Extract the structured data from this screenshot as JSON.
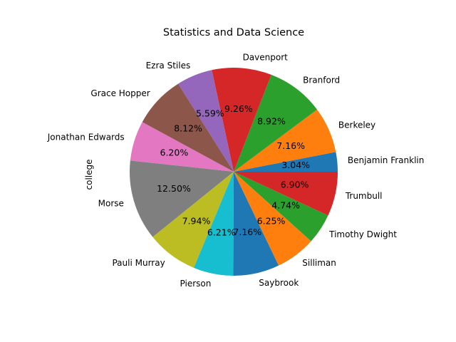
{
  "chart_data": {
    "type": "pie",
    "title": "Statistics and Data Science",
    "ylabel": "college",
    "slices": [
      {
        "label": "Benjamin Franklin",
        "value": 3.04,
        "pct_label": "3.04%",
        "color": "#1f77b4"
      },
      {
        "label": "Berkeley",
        "value": 7.16,
        "pct_label": "7.16%",
        "color": "#ff7f0e"
      },
      {
        "label": "Branford",
        "value": 8.92,
        "pct_label": "8.92%",
        "color": "#2ca02c"
      },
      {
        "label": "Davenport",
        "value": 9.26,
        "pct_label": "9.26%",
        "color": "#d62728"
      },
      {
        "label": "Ezra Stiles",
        "value": 5.59,
        "pct_label": "5.59%",
        "color": "#9467bd"
      },
      {
        "label": "Grace Hopper",
        "value": 8.12,
        "pct_label": "8.12%",
        "color": "#8c564b"
      },
      {
        "label": "Jonathan Edwards",
        "value": 6.2,
        "pct_label": "6.20%",
        "color": "#e377c2"
      },
      {
        "label": "Morse",
        "value": 12.5,
        "pct_label": "12.50%",
        "color": "#7f7f7f"
      },
      {
        "label": "Pauli Murray",
        "value": 7.94,
        "pct_label": "7.94%",
        "color": "#bcbd22"
      },
      {
        "label": "Pierson",
        "value": 6.21,
        "pct_label": "6.21%",
        "color": "#17becf"
      },
      {
        "label": "Saybrook",
        "value": 7.16,
        "pct_label": "7.16%",
        "color": "#1f77b4"
      },
      {
        "label": "Silliman",
        "value": 6.25,
        "pct_label": "6.25%",
        "color": "#ff7f0e"
      },
      {
        "label": "Timothy Dwight",
        "value": 4.74,
        "pct_label": "4.74%",
        "color": "#2ca02c"
      },
      {
        "label": "Trumbull",
        "value": 6.9,
        "pct_label": "6.90%",
        "color": "#d62728"
      }
    ],
    "start_angle_deg": 0,
    "direction": "counterclockwise",
    "legend": "none"
  }
}
